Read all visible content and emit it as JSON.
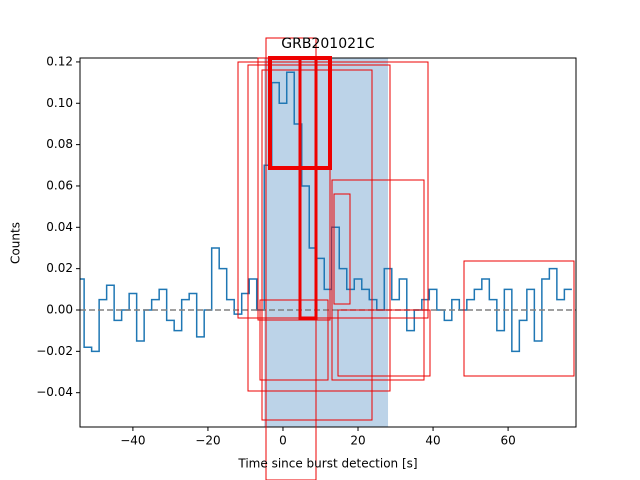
{
  "chart_data": {
    "type": "step",
    "title": "GRB201021C",
    "x_label": "Time since burst detection [s]",
    "y_label": "Counts",
    "x": [
      -54,
      -52,
      -50,
      -48,
      -46,
      -44,
      -42,
      -40,
      -38,
      -36,
      -34,
      -32,
      -30,
      -28,
      -26,
      -24,
      -22,
      -20,
      -18,
      -16,
      -14,
      -12,
      -10,
      -8,
      -6,
      -4,
      -2,
      0,
      2,
      4,
      6,
      8,
      10,
      12,
      14,
      16,
      18,
      20,
      22,
      24,
      26,
      28,
      30,
      32,
      34,
      36,
      38,
      40,
      42,
      44,
      46,
      48,
      50,
      52,
      54,
      56,
      58,
      60,
      62,
      64,
      66,
      68,
      70,
      72,
      74,
      76
    ],
    "values": [
      0.015,
      -0.018,
      -0.02,
      0.005,
      0.012,
      -0.005,
      0.0,
      0.008,
      -0.015,
      0.0,
      0.005,
      0.01,
      -0.005,
      -0.01,
      0.005,
      0.008,
      -0.013,
      0.0,
      0.03,
      0.02,
      0.005,
      -0.002,
      0.008,
      0.015,
      0.0,
      0.07,
      0.11,
      0.1,
      0.115,
      0.09,
      0.06,
      0.03,
      0.025,
      0.01,
      0.04,
      0.02,
      0.01,
      0.015,
      0.01,
      0.005,
      0.0,
      0.02,
      0.005,
      0.015,
      -0.01,
      0.0,
      0.005,
      0.01,
      0.0,
      -0.005,
      0.005,
      0.0,
      0.005,
      0.01,
      0.015,
      0.005,
      -0.01,
      0.01,
      -0.02,
      -0.005,
      0.01,
      -0.015,
      0.015,
      0.02,
      0.005,
      0.01
    ],
    "color": "#1f77b4",
    "span": [
      -5,
      28
    ],
    "span_color": "#bcd3e8",
    "reference_line": 0,
    "reference_color": "#808080",
    "xlim": [
      -54.1,
      78.1
    ],
    "xticks": [
      {
        "value": -40,
        "label": "−40"
      },
      {
        "value": -20,
        "label": "−20"
      },
      0,
      20,
      40,
      60
    ],
    "ylim": [
      -0.0566,
      0.1219
    ],
    "yticks": [
      {
        "value": -0.04,
        "label": "−0.04"
      },
      {
        "value": -0.02,
        "label": "−0.02"
      },
      {
        "value": 0,
        "label": "0.00"
      },
      {
        "value": 0.02,
        "label": "0.02"
      },
      {
        "value": 0.04,
        "label": "0.04"
      },
      {
        "value": 0.06,
        "label": "0.06"
      },
      {
        "value": 0.08,
        "label": "0.08"
      },
      {
        "value": 0.1,
        "label": "0.10"
      },
      {
        "value": 0.12,
        "label": "0.12"
      }
    ]
  }
}
